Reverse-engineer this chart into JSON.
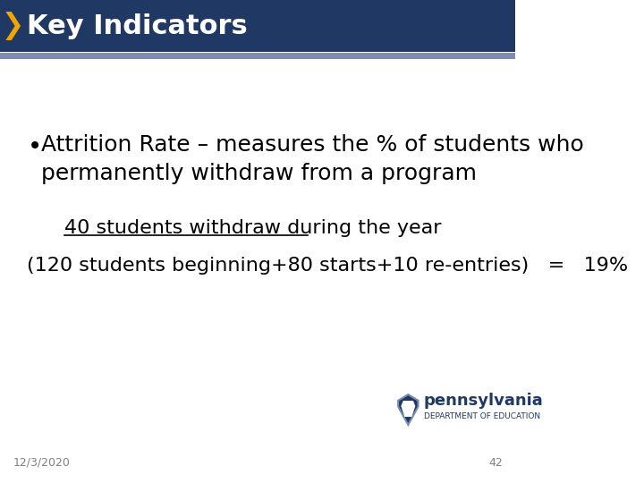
{
  "title": "Key Indicators",
  "title_bg_color": "#1F3864",
  "title_text_color": "#FFFFFF",
  "title_arrow_color": "#F0A500",
  "subtitle_bar_color": "#7B8DB0",
  "bullet_text_line1": "Attrition Rate – measures the % of students who",
  "bullet_text_line2": "permanently withdraw from a program",
  "fraction_numerator": "40 students withdraw during the year",
  "fraction_denominator": "(120 students beginning+80 starts+10 re-entries)   =   19%",
  "footer_date": "12/3/2020",
  "footer_page": "42",
  "bg_color": "#FFFFFF",
  "body_text_color": "#000000",
  "footer_text_color": "#808080"
}
